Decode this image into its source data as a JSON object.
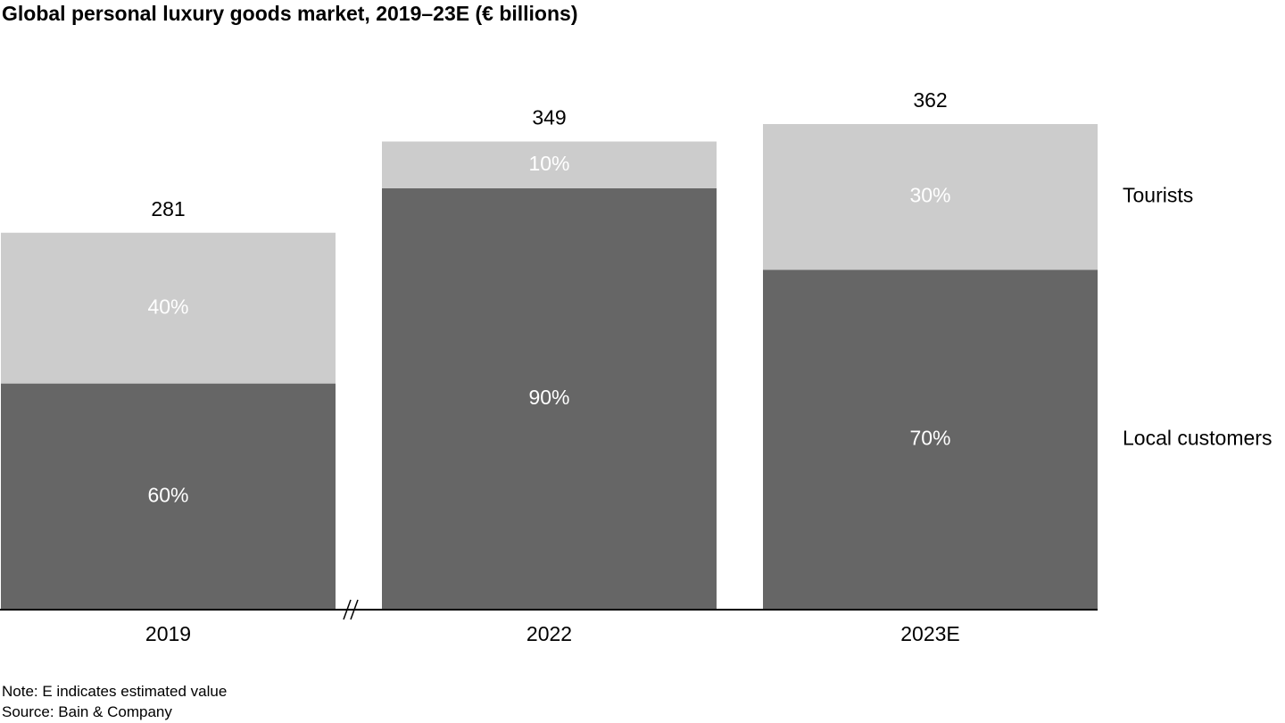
{
  "title": "Global personal luxury goods market, 2019–23E (€ billions)",
  "footer": {
    "note": "Note: E indicates estimated value",
    "source": "Source: Bain & Company"
  },
  "colors": {
    "local": "#666666",
    "tourists": "#cccccc",
    "axis": "#000000"
  },
  "chart_data": {
    "type": "bar",
    "stacked": true,
    "categories": [
      "2019",
      "2022",
      "2023E"
    ],
    "totals": [
      281,
      349,
      362
    ],
    "total_labels": [
      "281",
      "349",
      "362"
    ],
    "series": [
      {
        "name": "Local customers",
        "share": [
          60,
          90,
          70
        ],
        "labels": [
          "60%",
          "90%",
          "70%"
        ]
      },
      {
        "name": "Tourists",
        "share": [
          40,
          10,
          30
        ],
        "labels": [
          "40%",
          "10%",
          "30%"
        ]
      }
    ],
    "axis_break_between": [
      "2019",
      "2022"
    ],
    "ylim": [
      0,
      362
    ],
    "grid": false,
    "legend": "right, labels aligned to segments"
  }
}
